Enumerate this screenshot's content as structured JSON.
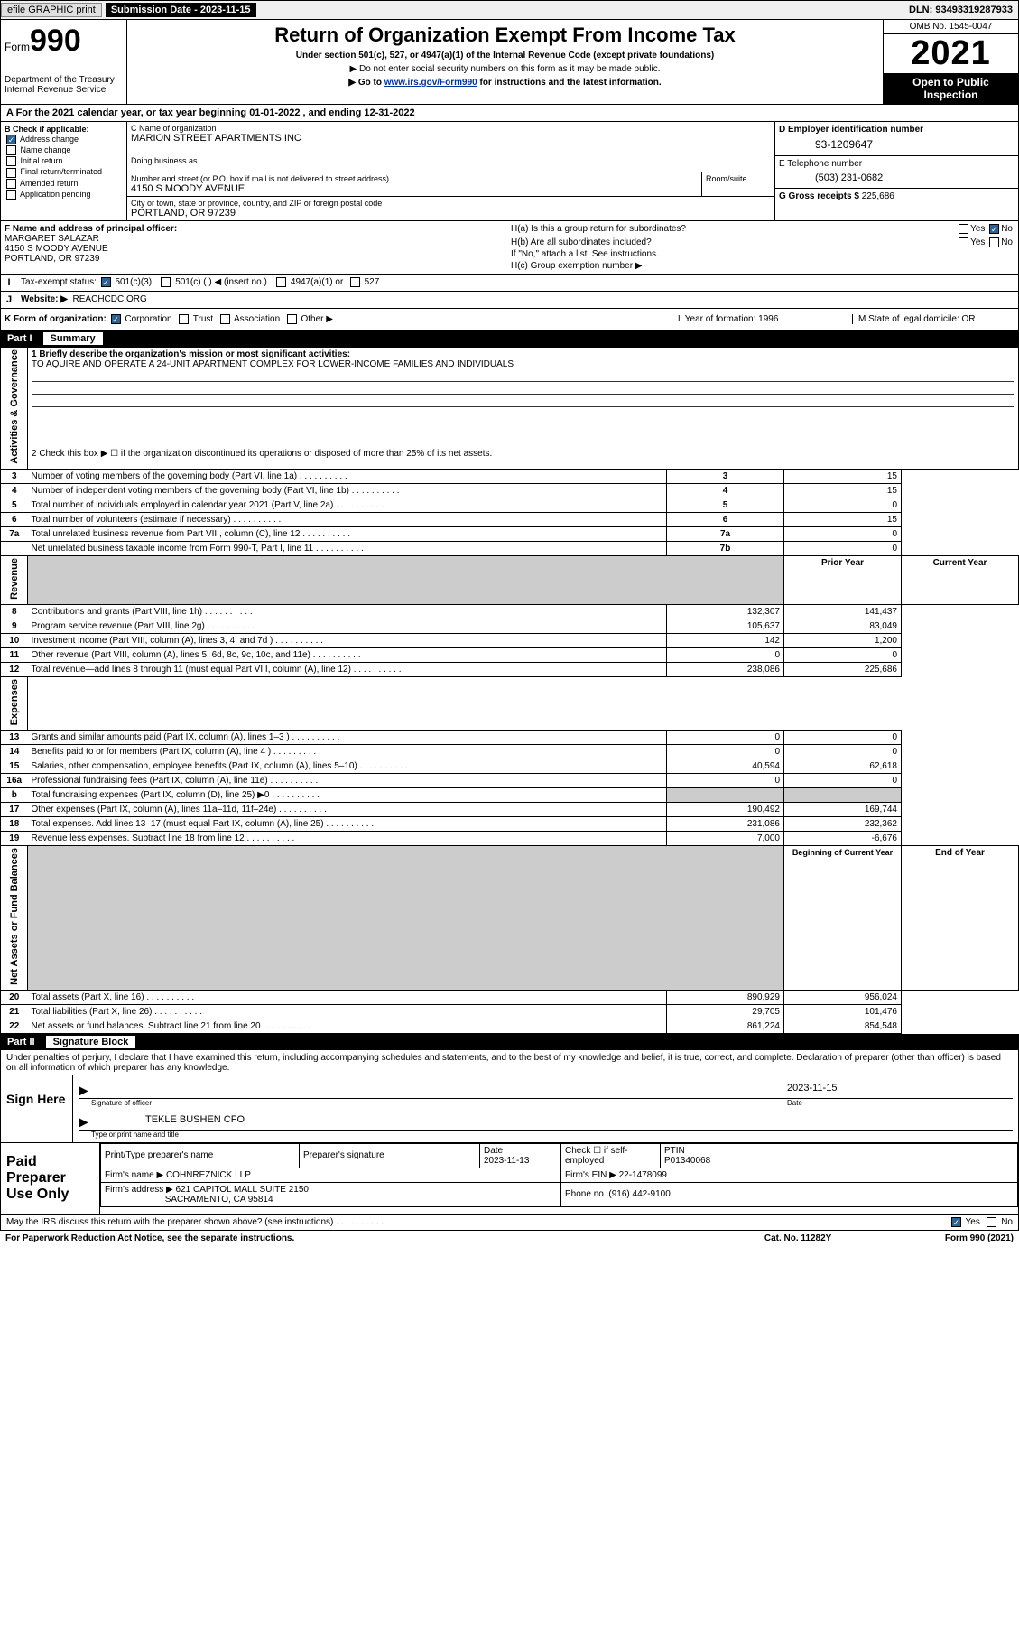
{
  "topbar": {
    "btn1": "efile GRAPHIC print",
    "sub_label": "Submission Date - 2023-11-15",
    "dln": "DLN: 93493319287933"
  },
  "header": {
    "form_word": "Form",
    "form_num": "990",
    "dept": "Department of the Treasury\nInternal Revenue Service",
    "title": "Return of Organization Exempt From Income Tax",
    "subline": "Under section 501(c), 527, or 4947(a)(1) of the Internal Revenue Code (except private foundations)",
    "noentry": "▶ Do not enter social security numbers on this form as it may be made public.",
    "goto_pre": "▶ Go to ",
    "goto_link": "www.irs.gov/Form990",
    "goto_post": " for instructions and the latest information.",
    "omb": "OMB No. 1545-0047",
    "year": "2021",
    "inspect": "Open to Public Inspection"
  },
  "line_a": "A For the 2021 calendar year, or tax year beginning 01-01-2022   , and ending 12-31-2022",
  "col_b": {
    "hdr": "B Check if applicable:",
    "opts": [
      "Address change",
      "Name change",
      "Initial return",
      "Final return/terminated",
      "Amended return",
      "Application pending"
    ],
    "checked_idx": 0
  },
  "col_c": {
    "name_lbl": "C Name of organization",
    "name_val": "MARION STREET APARTMENTS INC",
    "dba_lbl": "Doing business as",
    "street_lbl": "Number and street (or P.O. box if mail is not delivered to street address)",
    "street_val": "4150 S MOODY AVENUE",
    "room_lbl": "Room/suite",
    "city_lbl": "City or town, state or province, country, and ZIP or foreign postal code",
    "city_val": "PORTLAND, OR  97239"
  },
  "col_d": {
    "ein_lbl": "D Employer identification number",
    "ein_val": "93-1209647",
    "phone_lbl": "E Telephone number",
    "phone_val": "(503) 231-0682",
    "gross_lbl": "G Gross receipts $",
    "gross_val": "225,686"
  },
  "col_f": {
    "lbl": "F Name and address of principal officer:",
    "name": "MARGARET SALAZAR",
    "addr1": "4150 S MOODY AVENUE",
    "addr2": "PORTLAND, OR  97239"
  },
  "col_h": {
    "ha": "H(a)  Is this a group return for subordinates?",
    "hb": "H(b)  Are all subordinates included?",
    "hb_note": "If \"No,\" attach a list. See instructions.",
    "hc": "H(c)  Group exemption number ▶",
    "yes": "Yes",
    "no": "No"
  },
  "row_i": {
    "lbl": "Tax-exempt status:",
    "o1": "501(c)(3)",
    "o2": "501(c) (  ) ◀ (insert no.)",
    "o3": "4947(a)(1) or",
    "o4": "527"
  },
  "row_j": {
    "lbl": "Website: ▶",
    "val": "REACHCDC.ORG"
  },
  "row_k": {
    "lbl": "K Form of organization:",
    "opts": [
      "Corporation",
      "Trust",
      "Association",
      "Other ▶"
    ],
    "l": "L Year of formation: 1996",
    "m": "M State of legal domicile: OR"
  },
  "part1": {
    "num": "Part I",
    "title": "Summary"
  },
  "summary": {
    "vert_labels": [
      "Activities & Governance",
      "Revenue",
      "Expenses",
      "Net Assets or Fund Balances"
    ],
    "line1_lbl": "1  Briefly describe the organization's mission or most significant activities:",
    "line1_val": "TO AQUIRE AND OPERATE A 24-UNIT APARTMENT COMPLEX FOR LOWER-INCOME FAMILIES AND INDIVIDUALS",
    "line2": "2   Check this box ▶ ☐  if the organization discontinued its operations or disposed of more than 25% of its net assets.",
    "gov_rows": [
      {
        "n": "3",
        "t": "Number of voting members of the governing body (Part VI, line 1a)",
        "box": "3",
        "v": "15"
      },
      {
        "n": "4",
        "t": "Number of independent voting members of the governing body (Part VI, line 1b)",
        "box": "4",
        "v": "15"
      },
      {
        "n": "5",
        "t": "Total number of individuals employed in calendar year 2021 (Part V, line 2a)",
        "box": "5",
        "v": "0"
      },
      {
        "n": "6",
        "t": "Total number of volunteers (estimate if necessary)",
        "box": "6",
        "v": "15"
      },
      {
        "n": "7a",
        "t": "Total unrelated business revenue from Part VIII, column (C), line 12",
        "box": "7a",
        "v": "0"
      },
      {
        "n": "",
        "t": "Net unrelated business taxable income from Form 990-T, Part I, line 11",
        "box": "7b",
        "v": "0"
      }
    ],
    "pycy_hdr": {
      "py": "Prior Year",
      "cy": "Current Year"
    },
    "rev_rows": [
      {
        "n": "8",
        "t": "Contributions and grants (Part VIII, line 1h)",
        "py": "132,307",
        "cy": "141,437"
      },
      {
        "n": "9",
        "t": "Program service revenue (Part VIII, line 2g)",
        "py": "105,637",
        "cy": "83,049"
      },
      {
        "n": "10",
        "t": "Investment income (Part VIII, column (A), lines 3, 4, and 7d )",
        "py": "142",
        "cy": "1,200"
      },
      {
        "n": "11",
        "t": "Other revenue (Part VIII, column (A), lines 5, 6d, 8c, 9c, 10c, and 11e)",
        "py": "0",
        "cy": "0"
      },
      {
        "n": "12",
        "t": "Total revenue—add lines 8 through 11 (must equal Part VIII, column (A), line 12)",
        "py": "238,086",
        "cy": "225,686"
      }
    ],
    "exp_rows": [
      {
        "n": "13",
        "t": "Grants and similar amounts paid (Part IX, column (A), lines 1–3 )",
        "py": "0",
        "cy": "0"
      },
      {
        "n": "14",
        "t": "Benefits paid to or for members (Part IX, column (A), line 4 )",
        "py": "0",
        "cy": "0"
      },
      {
        "n": "15",
        "t": "Salaries, other compensation, employee benefits (Part IX, column (A), lines 5–10)",
        "py": "40,594",
        "cy": "62,618"
      },
      {
        "n": "16a",
        "t": "Professional fundraising fees (Part IX, column (A), line 11e)",
        "py": "0",
        "cy": "0"
      },
      {
        "n": "b",
        "t": "Total fundraising expenses (Part IX, column (D), line 25) ▶0",
        "py": "",
        "cy": "",
        "shade": true
      },
      {
        "n": "17",
        "t": "Other expenses (Part IX, column (A), lines 11a–11d, 11f–24e)",
        "py": "190,492",
        "cy": "169,744"
      },
      {
        "n": "18",
        "t": "Total expenses. Add lines 13–17 (must equal Part IX, column (A), line 25)",
        "py": "231,086",
        "cy": "232,362"
      },
      {
        "n": "19",
        "t": "Revenue less expenses. Subtract line 18 from line 12",
        "py": "7,000",
        "cy": "-6,676"
      }
    ],
    "na_hdr": {
      "py": "Beginning of Current Year",
      "cy": "End of Year"
    },
    "na_rows": [
      {
        "n": "20",
        "t": "Total assets (Part X, line 16)",
        "py": "890,929",
        "cy": "956,024"
      },
      {
        "n": "21",
        "t": "Total liabilities (Part X, line 26)",
        "py": "29,705",
        "cy": "101,476"
      },
      {
        "n": "22",
        "t": "Net assets or fund balances. Subtract line 21 from line 20",
        "py": "861,224",
        "cy": "854,548"
      }
    ]
  },
  "part2": {
    "num": "Part II",
    "title": "Signature Block"
  },
  "sig": {
    "decl": "Under penalties of perjury, I declare that I have examined this return, including accompanying schedules and statements, and to the best of my knowledge and belief, it is true, correct, and complete. Declaration of preparer (other than officer) is based on all information of which preparer has any knowledge.",
    "here": "Sign Here",
    "off_lbl": "Signature of officer",
    "date_lbl": "Date",
    "date_val": "2023-11-15",
    "name_val": "TEKLE BUSHEN  CFO",
    "name_lbl": "Type or print name and title"
  },
  "paid": {
    "left": "Paid Preparer Use Only",
    "hdr": [
      "Print/Type preparer's name",
      "Preparer's signature",
      "Date",
      "",
      "PTIN"
    ],
    "r1_date": "2023-11-13",
    "r1_check": "Check ☐ if self-employed",
    "r1_ptin": "P01340068",
    "firm_lbl": "Firm's name    ▶",
    "firm_val": "COHNREZNICK LLP",
    "ein_lbl": "Firm's EIN ▶",
    "ein_val": "22-1478099",
    "addr_lbl": "Firm's address ▶",
    "addr_val1": "621 CAPITOL MALL SUITE 2150",
    "addr_val2": "SACRAMENTO, CA  95814",
    "phone_lbl": "Phone no.",
    "phone_val": "(916) 442-9100"
  },
  "bottom": {
    "q": "May the IRS discuss this return with the preparer shown above? (see instructions)",
    "yes": "Yes",
    "no": "No"
  },
  "footer": {
    "l": "For Paperwork Reduction Act Notice, see the separate instructions.",
    "c": "Cat. No. 11282Y",
    "r": "Form 990 (2021)"
  }
}
